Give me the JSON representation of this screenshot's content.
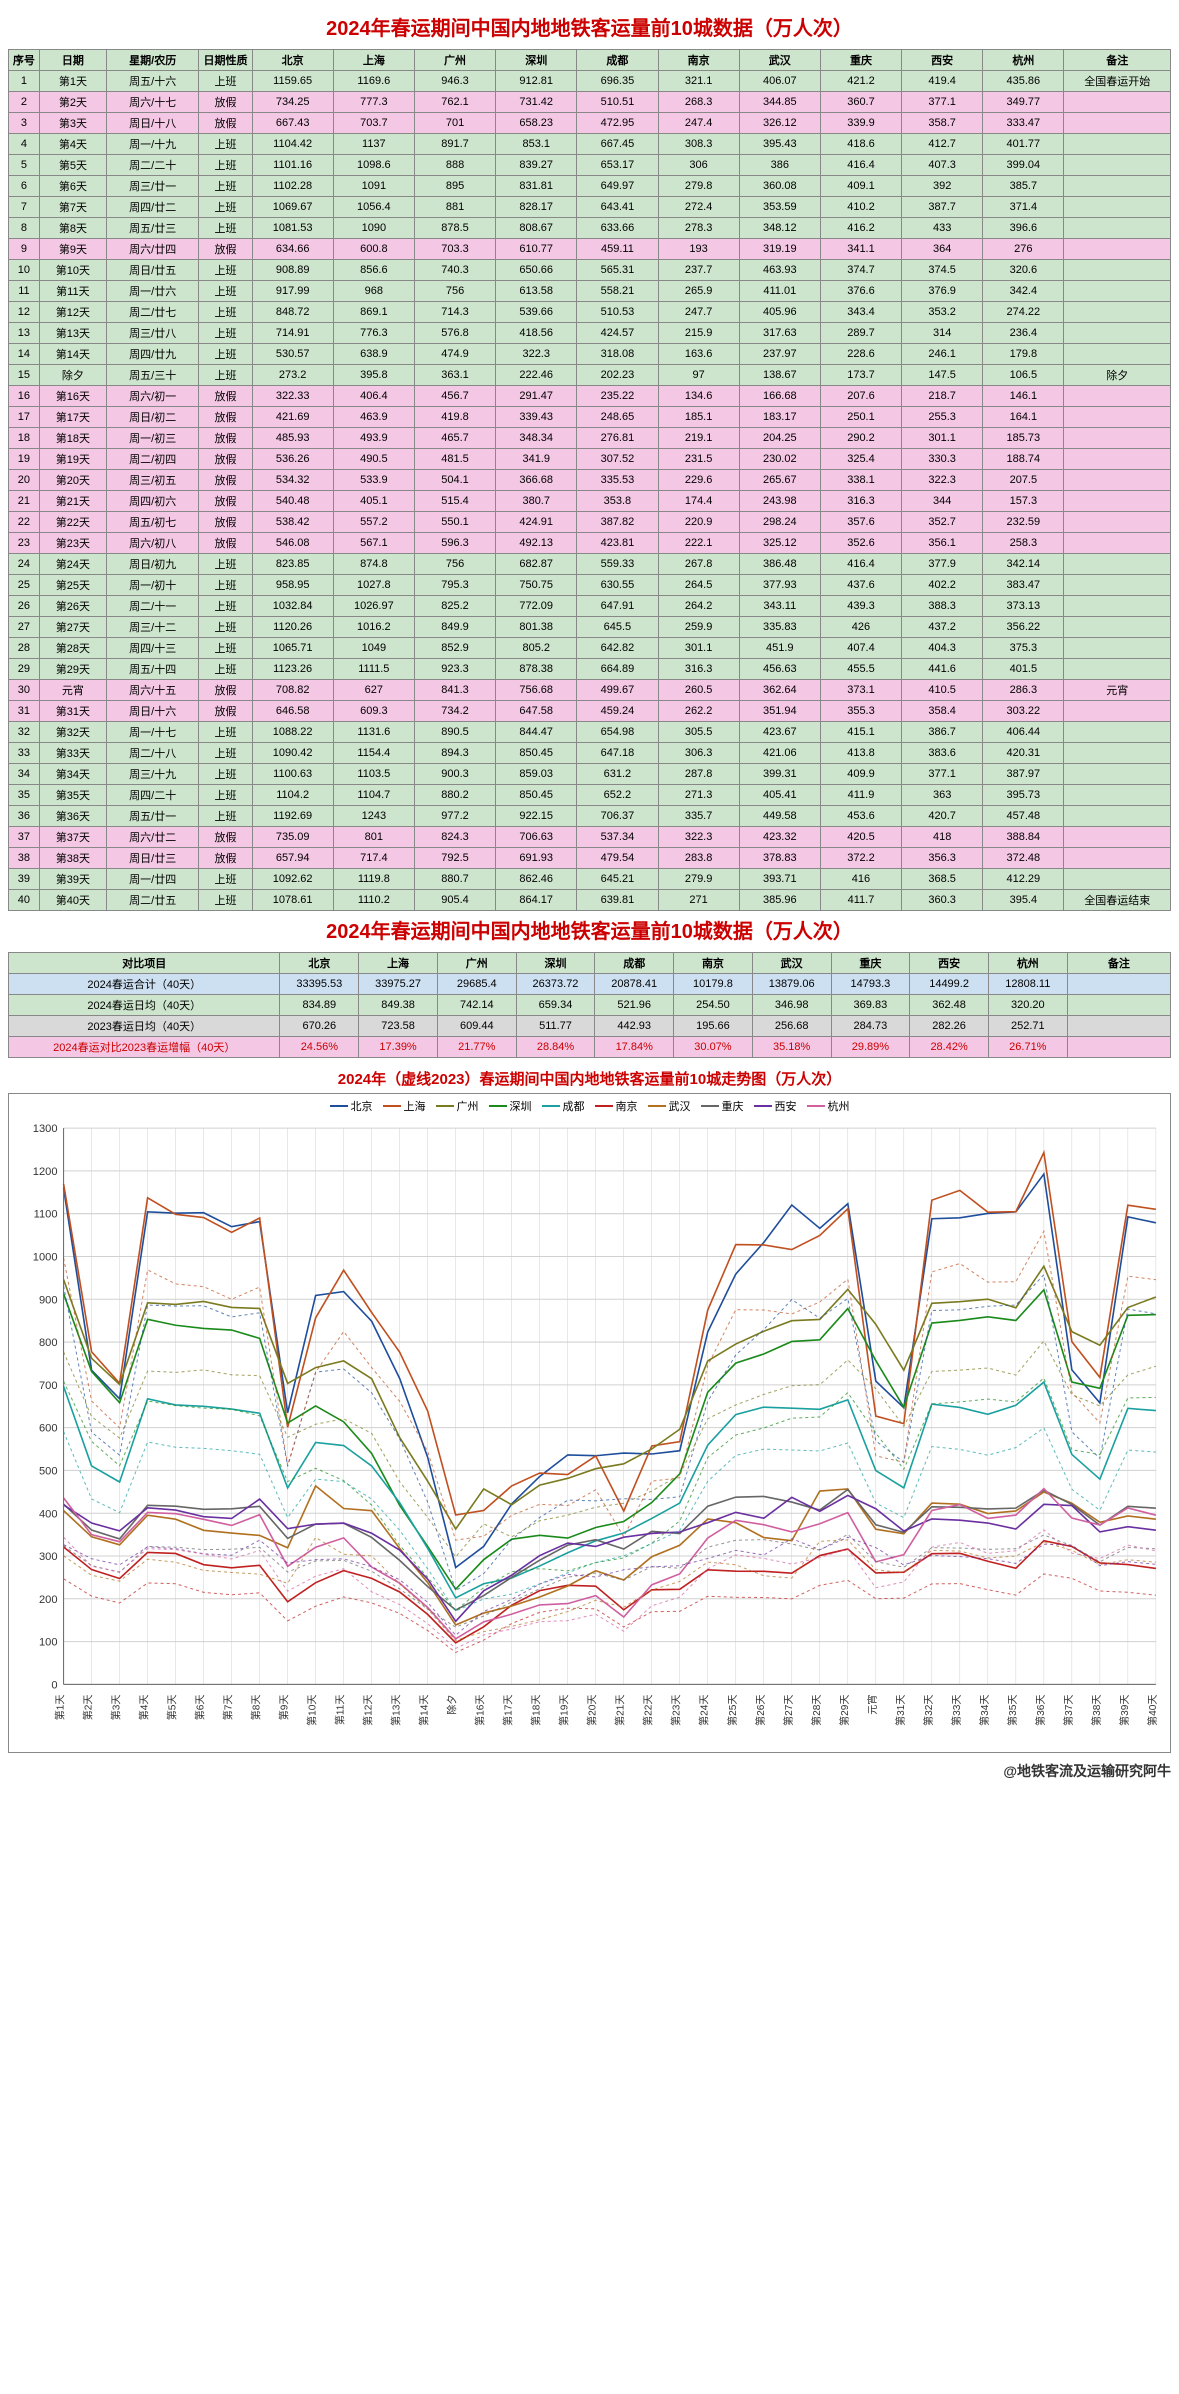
{
  "title": "2024年春运期间中国内地地铁客运量前10城数据（万人次）",
  "headers": [
    "序号",
    "日期",
    "星期/农历",
    "日期性质",
    "北京",
    "上海",
    "广州",
    "深圳",
    "成都",
    "南京",
    "武汉",
    "重庆",
    "西安",
    "杭州",
    "备注"
  ],
  "cities": [
    "北京",
    "上海",
    "广州",
    "深圳",
    "成都",
    "南京",
    "武汉",
    "重庆",
    "西安",
    "杭州"
  ],
  "colors": {
    "北京": "#1f4e9c",
    "上海": "#c05020",
    "广州": "#7a7a20",
    "深圳": "#1a8a1a",
    "成都": "#1aa0a0",
    "南京": "#c02020",
    "武汉": "#b07020",
    "重庆": "#666666",
    "西安": "#6a2fa0",
    "杭州": "#d05fa0",
    "grid": "#d0d0d0",
    "axis": "#666",
    "bg": "#ffffff"
  },
  "y": {
    "min": 0,
    "max": 1300,
    "step": 100
  },
  "rows": [
    {
      "n": 1,
      "d": "第1天",
      "l": "周五/十六",
      "t": "上班",
      "v": [
        1159.65,
        1169.6,
        946.3,
        912.81,
        696.35,
        321.1,
        406.07,
        421.2,
        419.4,
        435.86
      ],
      "note": "全国春运开始"
    },
    {
      "n": 2,
      "d": "第2天",
      "l": "周六/十七",
      "t": "放假",
      "v": [
        734.25,
        777.3,
        762.1,
        731.42,
        510.51,
        268.3,
        344.85,
        360.7,
        377.1,
        349.77
      ],
      "note": ""
    },
    {
      "n": 3,
      "d": "第3天",
      "l": "周日/十八",
      "t": "放假",
      "v": [
        667.43,
        703.7,
        701,
        658.23,
        472.95,
        247.4,
        326.12,
        339.9,
        358.7,
        333.47
      ],
      "note": ""
    },
    {
      "n": 4,
      "d": "第4天",
      "l": "周一/十九",
      "t": "上班",
      "v": [
        1104.42,
        1137,
        891.7,
        853.1,
        667.45,
        308.3,
        395.43,
        418.6,
        412.7,
        401.77
      ],
      "note": ""
    },
    {
      "n": 5,
      "d": "第5天",
      "l": "周二/二十",
      "t": "上班",
      "v": [
        1101.16,
        1098.6,
        888.0,
        839.27,
        653.17,
        306,
        386,
        416.4,
        407.3,
        399.04
      ],
      "note": ""
    },
    {
      "n": 6,
      "d": "第6天",
      "l": "周三/廿一",
      "t": "上班",
      "v": [
        1102.28,
        1091,
        895,
        831.81,
        649.97,
        279.8,
        360.08,
        409.1,
        392,
        385.7
      ],
      "note": ""
    },
    {
      "n": 7,
      "d": "第7天",
      "l": "周四/廿二",
      "t": "上班",
      "v": [
        1069.67,
        1056.4,
        881,
        828.17,
        643.41,
        272.4,
        353.59,
        410.2,
        387.7,
        371.4
      ],
      "note": ""
    },
    {
      "n": 8,
      "d": "第8天",
      "l": "周五/廿三",
      "t": "上班",
      "v": [
        1081.53,
        1090,
        878.5,
        808.67,
        633.66,
        278.3,
        348.12,
        416.2,
        433,
        396.6
      ],
      "note": ""
    },
    {
      "n": 9,
      "d": "第9天",
      "l": "周六/廿四",
      "t": "放假",
      "v": [
        634.66,
        600.8,
        703.3,
        610.77,
        459.11,
        193,
        319.19,
        341.1,
        364,
        276
      ],
      "note": ""
    },
    {
      "n": 10,
      "d": "第10天",
      "l": "周日/廿五",
      "t": "上班",
      "v": [
        908.89,
        856.6,
        740.3,
        650.66,
        565.31,
        237.7,
        463.93,
        374.7,
        374.5,
        320.6
      ],
      "note": ""
    },
    {
      "n": 11,
      "d": "第11天",
      "l": "周一/廿六",
      "t": "上班",
      "v": [
        917.99,
        968,
        756,
        613.58,
        558.21,
        265.9,
        411.01,
        376.6,
        376.9,
        342.4
      ],
      "note": ""
    },
    {
      "n": 12,
      "d": "第12天",
      "l": "周二/廿七",
      "t": "上班",
      "v": [
        848.72,
        869.1,
        714.3,
        539.66,
        510.53,
        247.7,
        405.96,
        343.4,
        353.2,
        274.22
      ],
      "note": ""
    },
    {
      "n": 13,
      "d": "第13天",
      "l": "周三/廿八",
      "t": "上班",
      "v": [
        714.91,
        776.3,
        576.8,
        418.56,
        424.57,
        215.9,
        317.63,
        289.7,
        314,
        236.4
      ],
      "note": ""
    },
    {
      "n": 14,
      "d": "第14天",
      "l": "周四/廿九",
      "t": "上班",
      "v": [
        530.57,
        638.9,
        474.9,
        322.3,
        318.08,
        163.6,
        237.97,
        228.6,
        246.1,
        179.8
      ],
      "note": ""
    },
    {
      "n": 15,
      "d": "除夕",
      "l": "周五/三十",
      "t": "上班",
      "v": [
        273.2,
        395.8,
        363.1,
        222.46,
        202.23,
        97,
        138.67,
        173.7,
        147.5,
        106.5
      ],
      "note": "除夕"
    },
    {
      "n": 16,
      "d": "第16天",
      "l": "周六/初一",
      "t": "放假",
      "v": [
        322.33,
        406.4,
        456.7,
        291.47,
        235.22,
        134.6,
        166.68,
        207.6,
        218.7,
        146.1
      ],
      "note": ""
    },
    {
      "n": 17,
      "d": "第17天",
      "l": "周日/初二",
      "t": "放假",
      "v": [
        421.69,
        463.9,
        419.8,
        339.43,
        248.65,
        185.1,
        183.17,
        250.1,
        255.3,
        164.1
      ],
      "note": ""
    },
    {
      "n": 18,
      "d": "第18天",
      "l": "周一/初三",
      "t": "放假",
      "v": [
        485.93,
        493.9,
        465.7,
        348.34,
        276.81,
        219.1,
        204.25,
        290.2,
        301.1,
        185.73
      ],
      "note": ""
    },
    {
      "n": 19,
      "d": "第19天",
      "l": "周二/初四",
      "t": "放假",
      "v": [
        536.26,
        490.5,
        481.5,
        341.9,
        307.52,
        231.5,
        230.02,
        325.4,
        330.3,
        188.74
      ],
      "note": ""
    },
    {
      "n": 20,
      "d": "第20天",
      "l": "周三/初五",
      "t": "放假",
      "v": [
        534.32,
        533.9,
        504.1,
        366.68,
        335.53,
        229.6,
        265.67,
        338.1,
        322.3,
        207.5
      ],
      "note": ""
    },
    {
      "n": 21,
      "d": "第21天",
      "l": "周四/初六",
      "t": "放假",
      "v": [
        540.48,
        405.1,
        515.4,
        380.7,
        353.8,
        174.4,
        243.98,
        316.3,
        344,
        157.3
      ],
      "note": ""
    },
    {
      "n": 22,
      "d": "第22天",
      "l": "周五/初七",
      "t": "放假",
      "v": [
        538.42,
        557.2,
        550.1,
        424.91,
        387.82,
        220.9,
        298.24,
        357.6,
        352.7,
        232.59
      ],
      "note": ""
    },
    {
      "n": 23,
      "d": "第23天",
      "l": "周六/初八",
      "t": "放假",
      "v": [
        546.08,
        567.1,
        596.3,
        492.13,
        423.81,
        222.1,
        325.12,
        352.6,
        356.1,
        258.3
      ],
      "note": ""
    },
    {
      "n": 24,
      "d": "第24天",
      "l": "周日/初九",
      "t": "上班",
      "v": [
        823.85,
        874.8,
        756,
        682.87,
        559.33,
        267.8,
        386.48,
        416.4,
        377.9,
        342.14
      ],
      "note": ""
    },
    {
      "n": 25,
      "d": "第25天",
      "l": "周一/初十",
      "t": "上班",
      "v": [
        958.95,
        1027.8,
        795.3,
        750.75,
        630.55,
        264.5,
        377.93,
        437.6,
        402.2,
        383.47
      ],
      "note": ""
    },
    {
      "n": 26,
      "d": "第26天",
      "l": "周二/十一",
      "t": "上班",
      "v": [
        1032.84,
        1026.97,
        825.2,
        772.09,
        647.91,
        264.2,
        343.11,
        439.3,
        388.3,
        373.13
      ],
      "note": ""
    },
    {
      "n": 27,
      "d": "第27天",
      "l": "周三/十二",
      "t": "上班",
      "v": [
        1120.26,
        1016.2,
        849.9,
        801.38,
        645.5,
        259.9,
        335.83,
        426,
        437.2,
        356.22
      ],
      "note": ""
    },
    {
      "n": 28,
      "d": "第28天",
      "l": "周四/十三",
      "t": "上班",
      "v": [
        1065.71,
        1049,
        852.9,
        805.2,
        642.82,
        301.1,
        451.9,
        407.4,
        404.3,
        375.3
      ],
      "note": ""
    },
    {
      "n": 29,
      "d": "第29天",
      "l": "周五/十四",
      "t": "上班",
      "v": [
        1123.26,
        1111.5,
        923.3,
        878.38,
        664.89,
        316.3,
        456.63,
        455.5,
        441.6,
        401.5
      ],
      "note": ""
    },
    {
      "n": 30,
      "d": "元宵",
      "l": "周六/十五",
      "t": "放假",
      "v": [
        708.82,
        627,
        841.3,
        756.68,
        499.67,
        260.5,
        362.64,
        373.1,
        410.5,
        286.3
      ],
      "note": "元宵"
    },
    {
      "n": 31,
      "d": "第31天",
      "l": "周日/十六",
      "t": "放假",
      "v": [
        646.58,
        609.3,
        734.2,
        647.58,
        459.24,
        262.2,
        351.94,
        355.3,
        358.4,
        303.22
      ],
      "note": ""
    },
    {
      "n": 32,
      "d": "第32天",
      "l": "周一/十七",
      "t": "上班",
      "v": [
        1088.22,
        1131.6,
        890.5,
        844.47,
        654.98,
        305.5,
        423.67,
        415.1,
        386.7,
        406.44
      ],
      "note": ""
    },
    {
      "n": 33,
      "d": "第33天",
      "l": "周二/十八",
      "t": "上班",
      "v": [
        1090.42,
        1154.4,
        894.3,
        850.45,
        647.18,
        306.3,
        421.06,
        413.8,
        383.6,
        420.31
      ],
      "note": ""
    },
    {
      "n": 34,
      "d": "第34天",
      "l": "周三/十九",
      "t": "上班",
      "v": [
        1100.63,
        1103.5,
        900.3,
        859.03,
        631.2,
        287.8,
        399.31,
        409.9,
        377.1,
        387.97
      ],
      "note": ""
    },
    {
      "n": 35,
      "d": "第35天",
      "l": "周四/二十",
      "t": "上班",
      "v": [
        1104.2,
        1104.7,
        880.2,
        850.45,
        652.2,
        271.3,
        405.41,
        411.9,
        363,
        395.73
      ],
      "note": ""
    },
    {
      "n": 36,
      "d": "第36天",
      "l": "周五/廿一",
      "t": "上班",
      "v": [
        1192.69,
        1243,
        977.2,
        922.15,
        706.37,
        335.7,
        449.58,
        453.6,
        420.7,
        457.48
      ],
      "note": ""
    },
    {
      "n": 37,
      "d": "第37天",
      "l": "周六/廿二",
      "t": "放假",
      "v": [
        735.09,
        801,
        824.3,
        706.63,
        537.34,
        322.3,
        423.32,
        420.5,
        418,
        388.84
      ],
      "note": ""
    },
    {
      "n": 38,
      "d": "第38天",
      "l": "周日/廿三",
      "t": "放假",
      "v": [
        657.94,
        717.4,
        792.5,
        691.93,
        479.54,
        283.8,
        378.83,
        372.2,
        356.3,
        372.48
      ],
      "note": ""
    },
    {
      "n": 39,
      "d": "第39天",
      "l": "周一/廿四",
      "t": "上班",
      "v": [
        1092.62,
        1119.8,
        880.7,
        862.46,
        645.21,
        279.9,
        393.71,
        416,
        368.5,
        412.29
      ],
      "note": ""
    },
    {
      "n": 40,
      "d": "第40天",
      "l": "周二/廿五",
      "t": "上班",
      "v": [
        1078.61,
        1110.2,
        905.4,
        864.17,
        639.81,
        271,
        385.96,
        411.7,
        360.3,
        395.4
      ],
      "note": "全国春运结束"
    }
  ],
  "summary_title": "2024年春运期间中国内地地铁客运量前10城数据（万人次）",
  "summary_header": "对比项目",
  "summary": [
    {
      "cls": "row-sum-blue",
      "label": "2024春运合计（40天）",
      "v": [
        "33395.53",
        "33975.27",
        "29685.4",
        "26373.72",
        "20878.41",
        "10179.8",
        "13879.06",
        "14793.3",
        "14499.2",
        "12808.11"
      ],
      "note": ""
    },
    {
      "cls": "row-sum-green",
      "label": "2024春运日均（40天）",
      "v": [
        "834.89",
        "849.38",
        "742.14",
        "659.34",
        "521.96",
        "254.50",
        "346.98",
        "369.83",
        "362.48",
        "320.20"
      ],
      "note": ""
    },
    {
      "cls": "row-sum-gray",
      "label": "2023春运日均（40天）",
      "v": [
        "670.26",
        "723.58",
        "609.44",
        "511.77",
        "442.93",
        "195.66",
        "256.68",
        "284.73",
        "282.26",
        "252.71"
      ],
      "note": ""
    },
    {
      "cls": "row-sum-pink",
      "label": "2024春运对比2023春运增幅（40天）",
      "v": [
        "24.56%",
        "17.39%",
        "21.77%",
        "28.84%",
        "17.84%",
        "30.07%",
        "35.18%",
        "29.89%",
        "28.42%",
        "26.71%"
      ],
      "note": ""
    }
  ],
  "chart_title": "2024年（虚线2023）春运期间中国内地地铁客运量前10城走势图（万人次）",
  "footer": "@地铁客流及运输研究阿牛"
}
